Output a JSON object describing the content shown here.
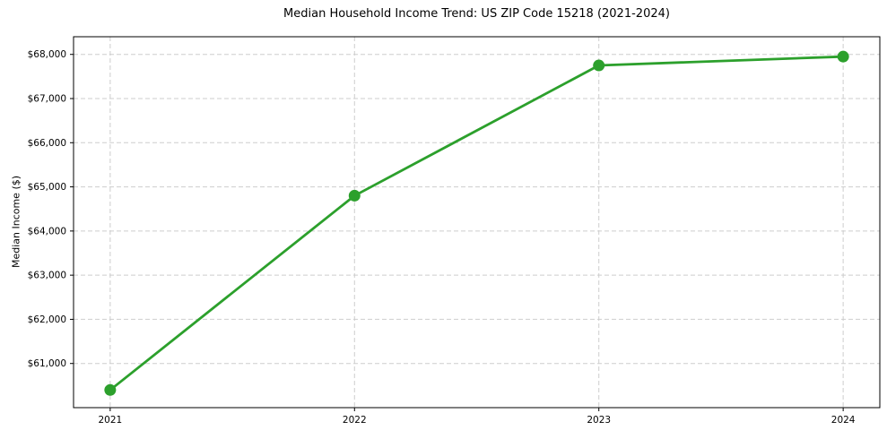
{
  "chart_data": {
    "type": "line",
    "title": "Median Household Income Trend: US ZIP Code 15218 (2021-2024)",
    "xlabel": "",
    "ylabel": "Median Income ($)",
    "x": [
      2021,
      2022,
      2023,
      2024
    ],
    "series": [
      {
        "name": "Median Household Income",
        "values": [
          60400,
          64800,
          67750,
          67950
        ]
      }
    ],
    "xticks": [
      2021,
      2022,
      2023,
      2024
    ],
    "xtick_labels": [
      "2021",
      "2022",
      "2023",
      "2024"
    ],
    "yticks": [
      61000,
      62000,
      63000,
      64000,
      65000,
      66000,
      67000,
      68000
    ],
    "ytick_labels": [
      "$61,000",
      "$62,000",
      "$63,000",
      "$64,000",
      "$65,000",
      "$66,000",
      "$67,000",
      "$68,000"
    ],
    "xlim": [
      2020.85,
      2024.15
    ],
    "ylim": [
      60000,
      68400
    ],
    "grid": true,
    "grid_style": "dashed",
    "legend_position": "none",
    "line_color": "#2ca02c",
    "marker": "circle",
    "marker_color": "#2ca02c",
    "grid_color": "#cdcdcd",
    "spine_color": "#000000",
    "background_color": "#ffffff"
  }
}
